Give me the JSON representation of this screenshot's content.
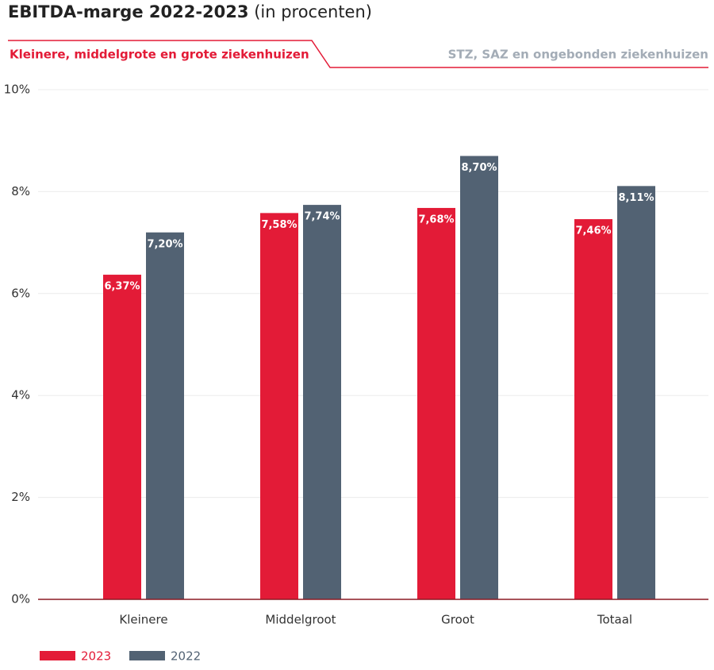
{
  "chart_data": {
    "type": "bar",
    "title": "EBITDA-marge 2022-2023",
    "subtitle": "(in procenten)",
    "tabs": [
      "Kleinere, middelgrote en grote ziekenhuizen",
      "STZ, SAZ en ongebonden ziekenhuizen"
    ],
    "categories": [
      "Kleinere",
      "Middelgroot",
      "Groot",
      "Totaal"
    ],
    "series": [
      {
        "name": "2023",
        "color": "#e31b37",
        "values": [
          6.37,
          7.58,
          7.68,
          7.46
        ],
        "value_labels": [
          "6,37%",
          "7,58%",
          "7,68%",
          "7,46%"
        ]
      },
      {
        "name": "2022",
        "color": "#526273",
        "values": [
          7.2,
          7.74,
          8.7,
          8.11
        ],
        "value_labels": [
          "7,20%",
          "7,74%",
          "8,70%",
          "8,11%"
        ]
      }
    ],
    "ylim": [
      0,
      10
    ],
    "yticks": [
      {
        "value": 0,
        "label": "0%"
      },
      {
        "value": 2,
        "label": "2%"
      },
      {
        "value": 4,
        "label": "4%"
      },
      {
        "value": 6,
        "label": "6%"
      },
      {
        "value": 8,
        "label": "8%"
      },
      {
        "value": 10,
        "label": "10%"
      }
    ],
    "grid": true
  }
}
